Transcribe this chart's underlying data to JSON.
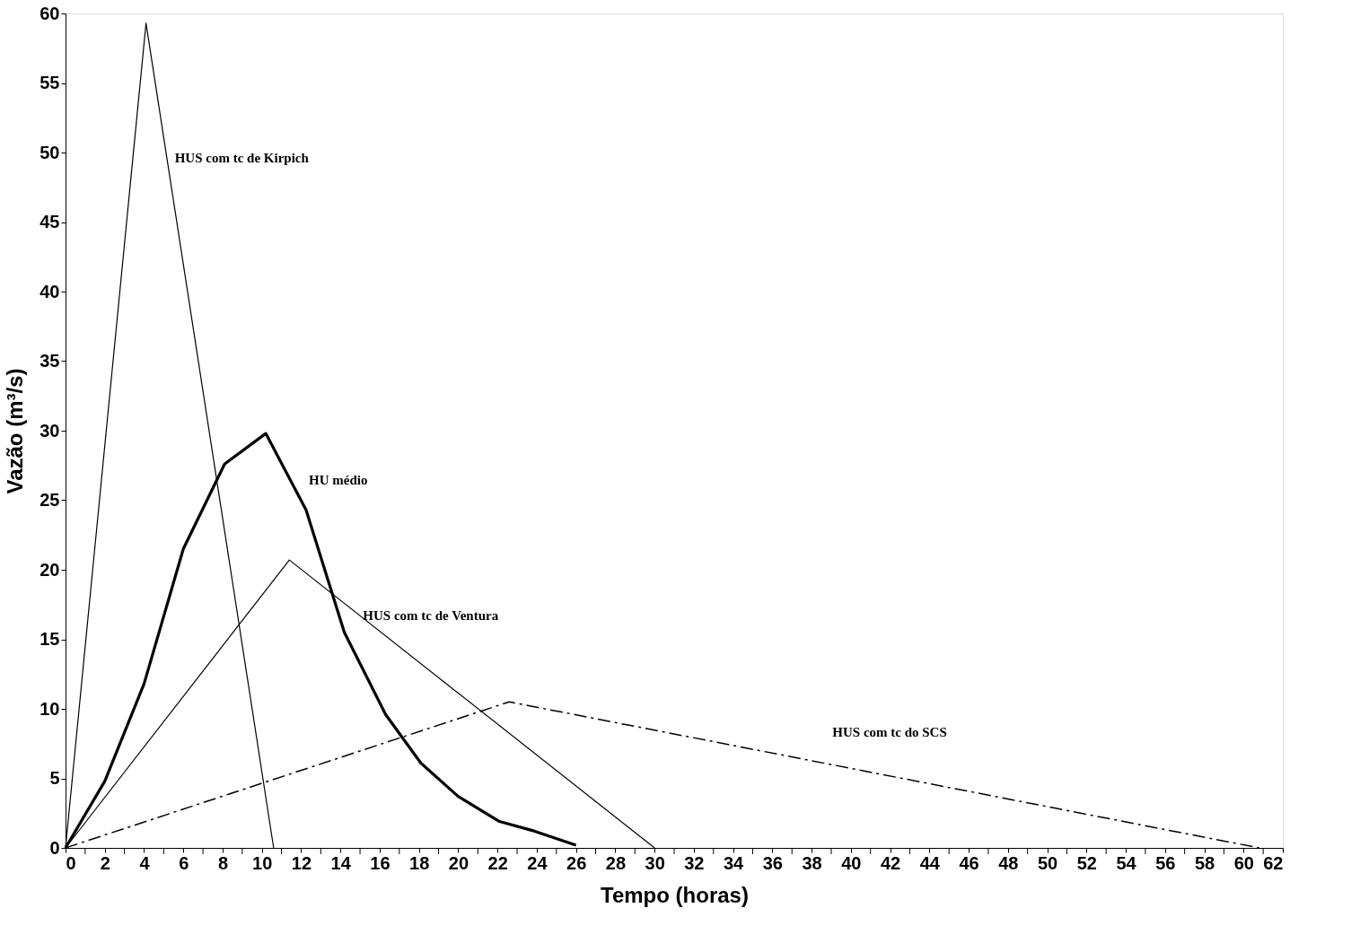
{
  "chart_data": {
    "type": "line",
    "xlabel": "Tempo (horas)",
    "ylabel": "Vazão (m³/s)",
    "xlim": [
      0,
      62
    ],
    "ylim": [
      0,
      60
    ],
    "xticks": [
      0,
      {
        "value": 1,
        "label": null
      },
      2,
      {
        "value": 3,
        "label": null
      },
      4,
      {
        "value": 5,
        "label": null
      },
      6,
      {
        "value": 7,
        "label": null
      },
      8,
      {
        "value": 9,
        "label": null
      },
      10,
      {
        "value": 11,
        "label": null
      },
      12,
      {
        "value": 13,
        "label": null
      },
      14,
      {
        "value": 15,
        "label": null
      },
      16,
      {
        "value": 17,
        "label": null
      },
      18,
      {
        "value": 19,
        "label": null
      },
      20,
      {
        "value": 21,
        "label": null
      },
      22,
      {
        "value": 23,
        "label": null
      },
      24,
      {
        "value": 25,
        "label": null
      },
      26,
      {
        "value": 27,
        "label": null
      },
      28,
      {
        "value": 29,
        "label": null
      },
      30,
      {
        "value": 31,
        "label": null
      },
      32,
      {
        "value": 33,
        "label": null
      },
      34,
      {
        "value": 35,
        "label": null
      },
      36,
      {
        "value": 37,
        "label": null
      },
      38,
      {
        "value": 39,
        "label": null
      },
      40,
      {
        "value": 41,
        "label": null
      },
      42,
      {
        "value": 43,
        "label": null
      },
      44,
      {
        "value": 45,
        "label": null
      },
      46,
      {
        "value": 47,
        "label": null
      },
      48,
      {
        "value": 49,
        "label": null
      },
      50,
      {
        "value": 51,
        "label": null
      },
      52,
      {
        "value": 53,
        "label": null
      },
      54,
      {
        "value": 55,
        "label": null
      },
      56,
      {
        "value": 57,
        "label": null
      },
      58,
      {
        "value": 59,
        "label": null
      },
      60,
      {
        "value": 61,
        "label": null
      },
      62
    ],
    "yticks": [
      0,
      5,
      10,
      15,
      20,
      25,
      30,
      35,
      40,
      45,
      50,
      55,
      60
    ],
    "grid": false,
    "legend": false,
    "marker": "none",
    "series": [
      {
        "name": "HUS com tc de Kirpich",
        "color": "#000000",
        "line_style": "solid",
        "x": [
          0,
          4.1,
          10.6
        ],
        "values": [
          0,
          59.3,
          0
        ]
      },
      {
        "name": "HU médio",
        "color": "#000000",
        "line_style": "solid",
        "x": [
          0,
          2.0,
          4.0,
          6.0,
          8.1,
          10.2,
          12.25,
          14.2,
          16.3,
          18.1,
          20.0,
          22.1,
          23.9,
          26.0
        ],
        "values": [
          0,
          4.8,
          11.8,
          21.5,
          27.6,
          29.8,
          24.3,
          15.5,
          9.6,
          6.1,
          3.7,
          1.9,
          1.2,
          0.2
        ]
      },
      {
        "name": "HUS com tc de Ventura",
        "color": "#000000",
        "line_style": "solid",
        "x": [
          0,
          11.4,
          30.0
        ],
        "values": [
          0,
          20.7,
          0
        ]
      },
      {
        "name": "HUS com tc do SCS",
        "color": "#000000",
        "line_style": "dashed",
        "x": [
          0,
          22.6,
          60.8
        ],
        "values": [
          0,
          10.5,
          0
        ]
      }
    ]
  }
}
